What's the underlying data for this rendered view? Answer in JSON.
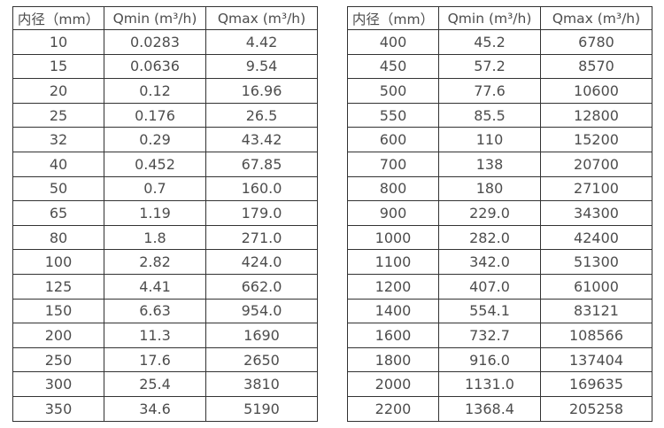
{
  "colors": {
    "background": "#ffffff",
    "border": "#333333",
    "text": "#4d4d4d"
  },
  "chart_data": [
    {
      "type": "table",
      "name": "flow-spec-table-small-diameters",
      "columns": [
        "内径（mm）",
        "Qmin (m³/h)",
        "Qmax (m³/h)"
      ],
      "rows": [
        [
          "10",
          "0.0283",
          "4.42"
        ],
        [
          "15",
          "0.0636",
          "9.54"
        ],
        [
          "20",
          "0.12",
          "16.96"
        ],
        [
          "25",
          "0.176",
          "26.5"
        ],
        [
          "32",
          "0.29",
          "43.42"
        ],
        [
          "40",
          "0.452",
          "67.85"
        ],
        [
          "50",
          "0.7",
          "160.0"
        ],
        [
          "65",
          "1.19",
          "179.0"
        ],
        [
          "80",
          "1.8",
          "271.0"
        ],
        [
          "100",
          "2.82",
          "424.0"
        ],
        [
          "125",
          "4.41",
          "662.0"
        ],
        [
          "150",
          "6.63",
          "954.0"
        ],
        [
          "200",
          "11.3",
          "1690"
        ],
        [
          "250",
          "17.6",
          "2650"
        ],
        [
          "300",
          "25.4",
          "3810"
        ],
        [
          "350",
          "34.6",
          "5190"
        ]
      ]
    },
    {
      "type": "table",
      "name": "flow-spec-table-large-diameters",
      "columns": [
        "内径（mm）",
        "Qmin (m³/h)",
        "Qmax (m³/h)"
      ],
      "rows": [
        [
          "400",
          "45.2",
          "6780"
        ],
        [
          "450",
          "57.2",
          "8570"
        ],
        [
          "500",
          "77.6",
          "10600"
        ],
        [
          "550",
          "85.5",
          "12800"
        ],
        [
          "600",
          "110",
          "15200"
        ],
        [
          "700",
          "138",
          "20700"
        ],
        [
          "800",
          "180",
          "27100"
        ],
        [
          "900",
          "229.0",
          "34300"
        ],
        [
          "1000",
          "282.0",
          "42400"
        ],
        [
          "1100",
          "342.0",
          "51300"
        ],
        [
          "1200",
          "407.0",
          "61000"
        ],
        [
          "1400",
          "554.1",
          "83121"
        ],
        [
          "1600",
          "732.7",
          "108566"
        ],
        [
          "1800",
          "916.0",
          "137404"
        ],
        [
          "2000",
          "1131.0",
          "169635"
        ],
        [
          "2200",
          "1368.4",
          "205258"
        ]
      ]
    }
  ]
}
